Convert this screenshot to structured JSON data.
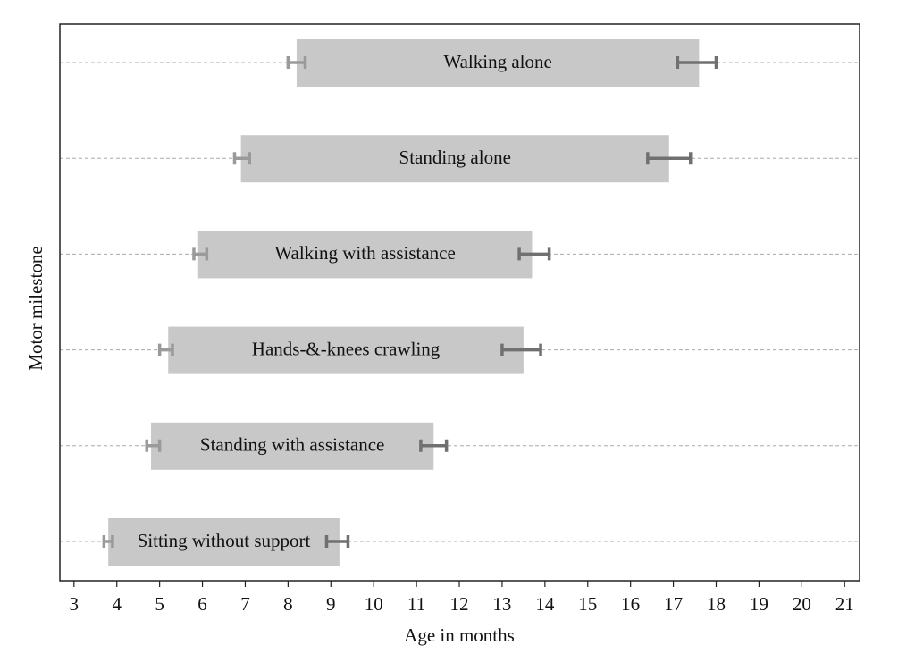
{
  "chart_data": {
    "type": "range_bar",
    "x_label": "Age in months",
    "y_label": "Motor milestone",
    "categories": [
      "Walking alone",
      "Standing alone",
      "Walking with assistance",
      "Hands-&-knees crawling",
      "Standing with assistance",
      "Sitting without support"
    ],
    "start": [
      8.2,
      6.9,
      5.9,
      5.2,
      4.8,
      3.8
    ],
    "end": [
      17.6,
      16.9,
      13.7,
      13.5,
      11.4,
      9.2
    ],
    "start_error": [
      [
        8.0,
        8.4
      ],
      [
        6.75,
        7.1
      ],
      [
        5.8,
        6.1
      ],
      [
        5.0,
        5.3
      ],
      [
        4.7,
        5.0
      ],
      [
        3.7,
        3.9
      ]
    ],
    "end_error": [
      [
        17.1,
        18.0
      ],
      [
        16.4,
        17.4
      ],
      [
        13.4,
        14.1
      ],
      [
        13.0,
        13.9
      ],
      [
        11.1,
        11.7
      ],
      [
        8.9,
        9.4
      ]
    ],
    "bar_color": "#c8c8c8",
    "start_error_color": "#9a9a9a",
    "end_error_color": "#707070",
    "xlim": [
      2.67,
      21.35
    ],
    "xticks": [
      3,
      4,
      5,
      6,
      7,
      8,
      9,
      10,
      11,
      12,
      13,
      14,
      15,
      16,
      17,
      18,
      19,
      20,
      21
    ],
    "grid": true
  }
}
